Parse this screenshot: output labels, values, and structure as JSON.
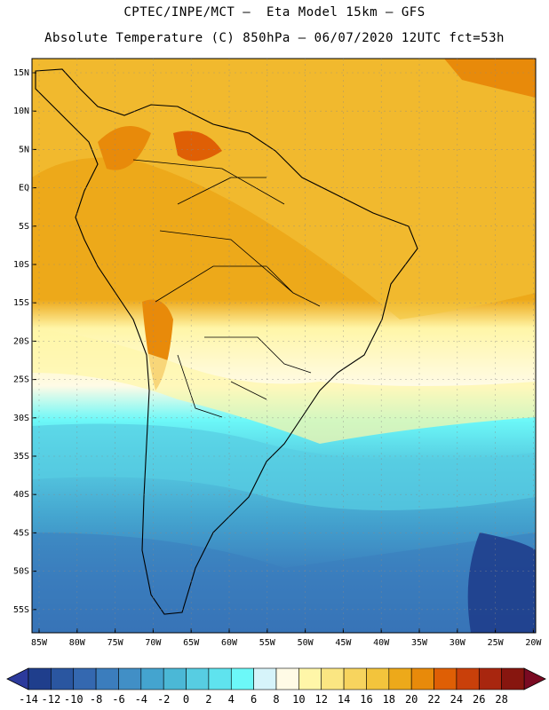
{
  "header": {
    "line1": "CPTEC/INPE/MCT –  Eta Model 15km – GFS",
    "line2": "Absolute Temperature (C) 850hPa – 06/07/2020 12UTC fct=53h"
  },
  "map": {
    "lat_labels": [
      "15N",
      "10N",
      "5N",
      "EQ",
      "5S",
      "10S",
      "15S",
      "20S",
      "25S",
      "30S",
      "35S",
      "40S",
      "45S",
      "50S",
      "55S"
    ],
    "lon_labels": [
      "85W",
      "80W",
      "75W",
      "70W",
      "65W",
      "60W",
      "55W",
      "50W",
      "45W",
      "40W",
      "35W",
      "30W",
      "25W",
      "20W"
    ]
  },
  "colorbar": {
    "labels": [
      "-14",
      "-12",
      "-10",
      "-8",
      "-6",
      "-4",
      "-2",
      "0",
      "2",
      "4",
      "6",
      "8",
      "10",
      "12",
      "14",
      "16",
      "18",
      "20",
      "22",
      "24",
      "26",
      "28"
    ],
    "colors": [
      "#1f3e8c",
      "#2a56a0",
      "#3468b0",
      "#3b7dbd",
      "#418fc6",
      "#44a4cf",
      "#4bb8d6",
      "#57cde2",
      "#5fe3ee",
      "#6cf8f8",
      "#d6f4fa",
      "#fffbe6",
      "#fff6a8",
      "#fbe682",
      "#f7d45e",
      "#f3c43c",
      "#eda91a",
      "#e88a0a",
      "#df5f05",
      "#c9400a",
      "#a8260f",
      "#87160f"
    ],
    "under_color": "#2c3a9c",
    "over_color": "#7a0a22"
  }
}
